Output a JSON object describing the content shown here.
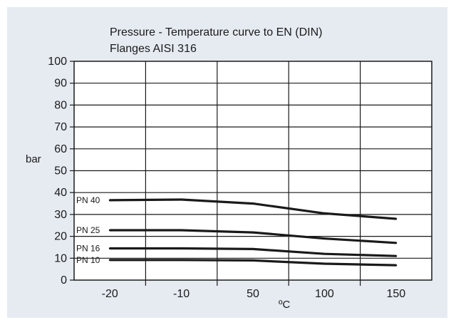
{
  "chart_data": {
    "type": "line",
    "title": "Pressure - Temperature curve to EN (DIN)",
    "subtitle": "Flanges AISI 316",
    "ylabel": "bar",
    "xlabel": "ºC",
    "ylim": [
      0,
      100
    ],
    "yticks": [
      0,
      10,
      20,
      30,
      40,
      50,
      60,
      70,
      80,
      90,
      100
    ],
    "categories": [
      "-20",
      "-10",
      "50",
      "100",
      "150"
    ],
    "series": [
      {
        "name": "PN 40",
        "x": [
          "-20",
          "-10",
          "50",
          "100",
          "150"
        ],
        "values": [
          36.5,
          36.8,
          35,
          30.5,
          28
        ]
      },
      {
        "name": "PN 25",
        "x": [
          "-20",
          "-10",
          "50",
          "100",
          "150"
        ],
        "values": [
          22.8,
          22.8,
          21.8,
          19,
          17
        ]
      },
      {
        "name": "PN 16",
        "x": [
          "-20",
          "-10",
          "50",
          "100",
          "150"
        ],
        "values": [
          14.5,
          14.5,
          14.2,
          12,
          11
        ]
      },
      {
        "name": "PN 10",
        "x": [
          "-20",
          "-10",
          "50",
          "100",
          "150"
        ],
        "values": [
          9.2,
          9.2,
          9,
          7.5,
          6.8
        ]
      }
    ],
    "grid": true,
    "line_color": "#1a1a1a",
    "background_color": "#e6ebf2",
    "plot_background": "#ffffff"
  }
}
